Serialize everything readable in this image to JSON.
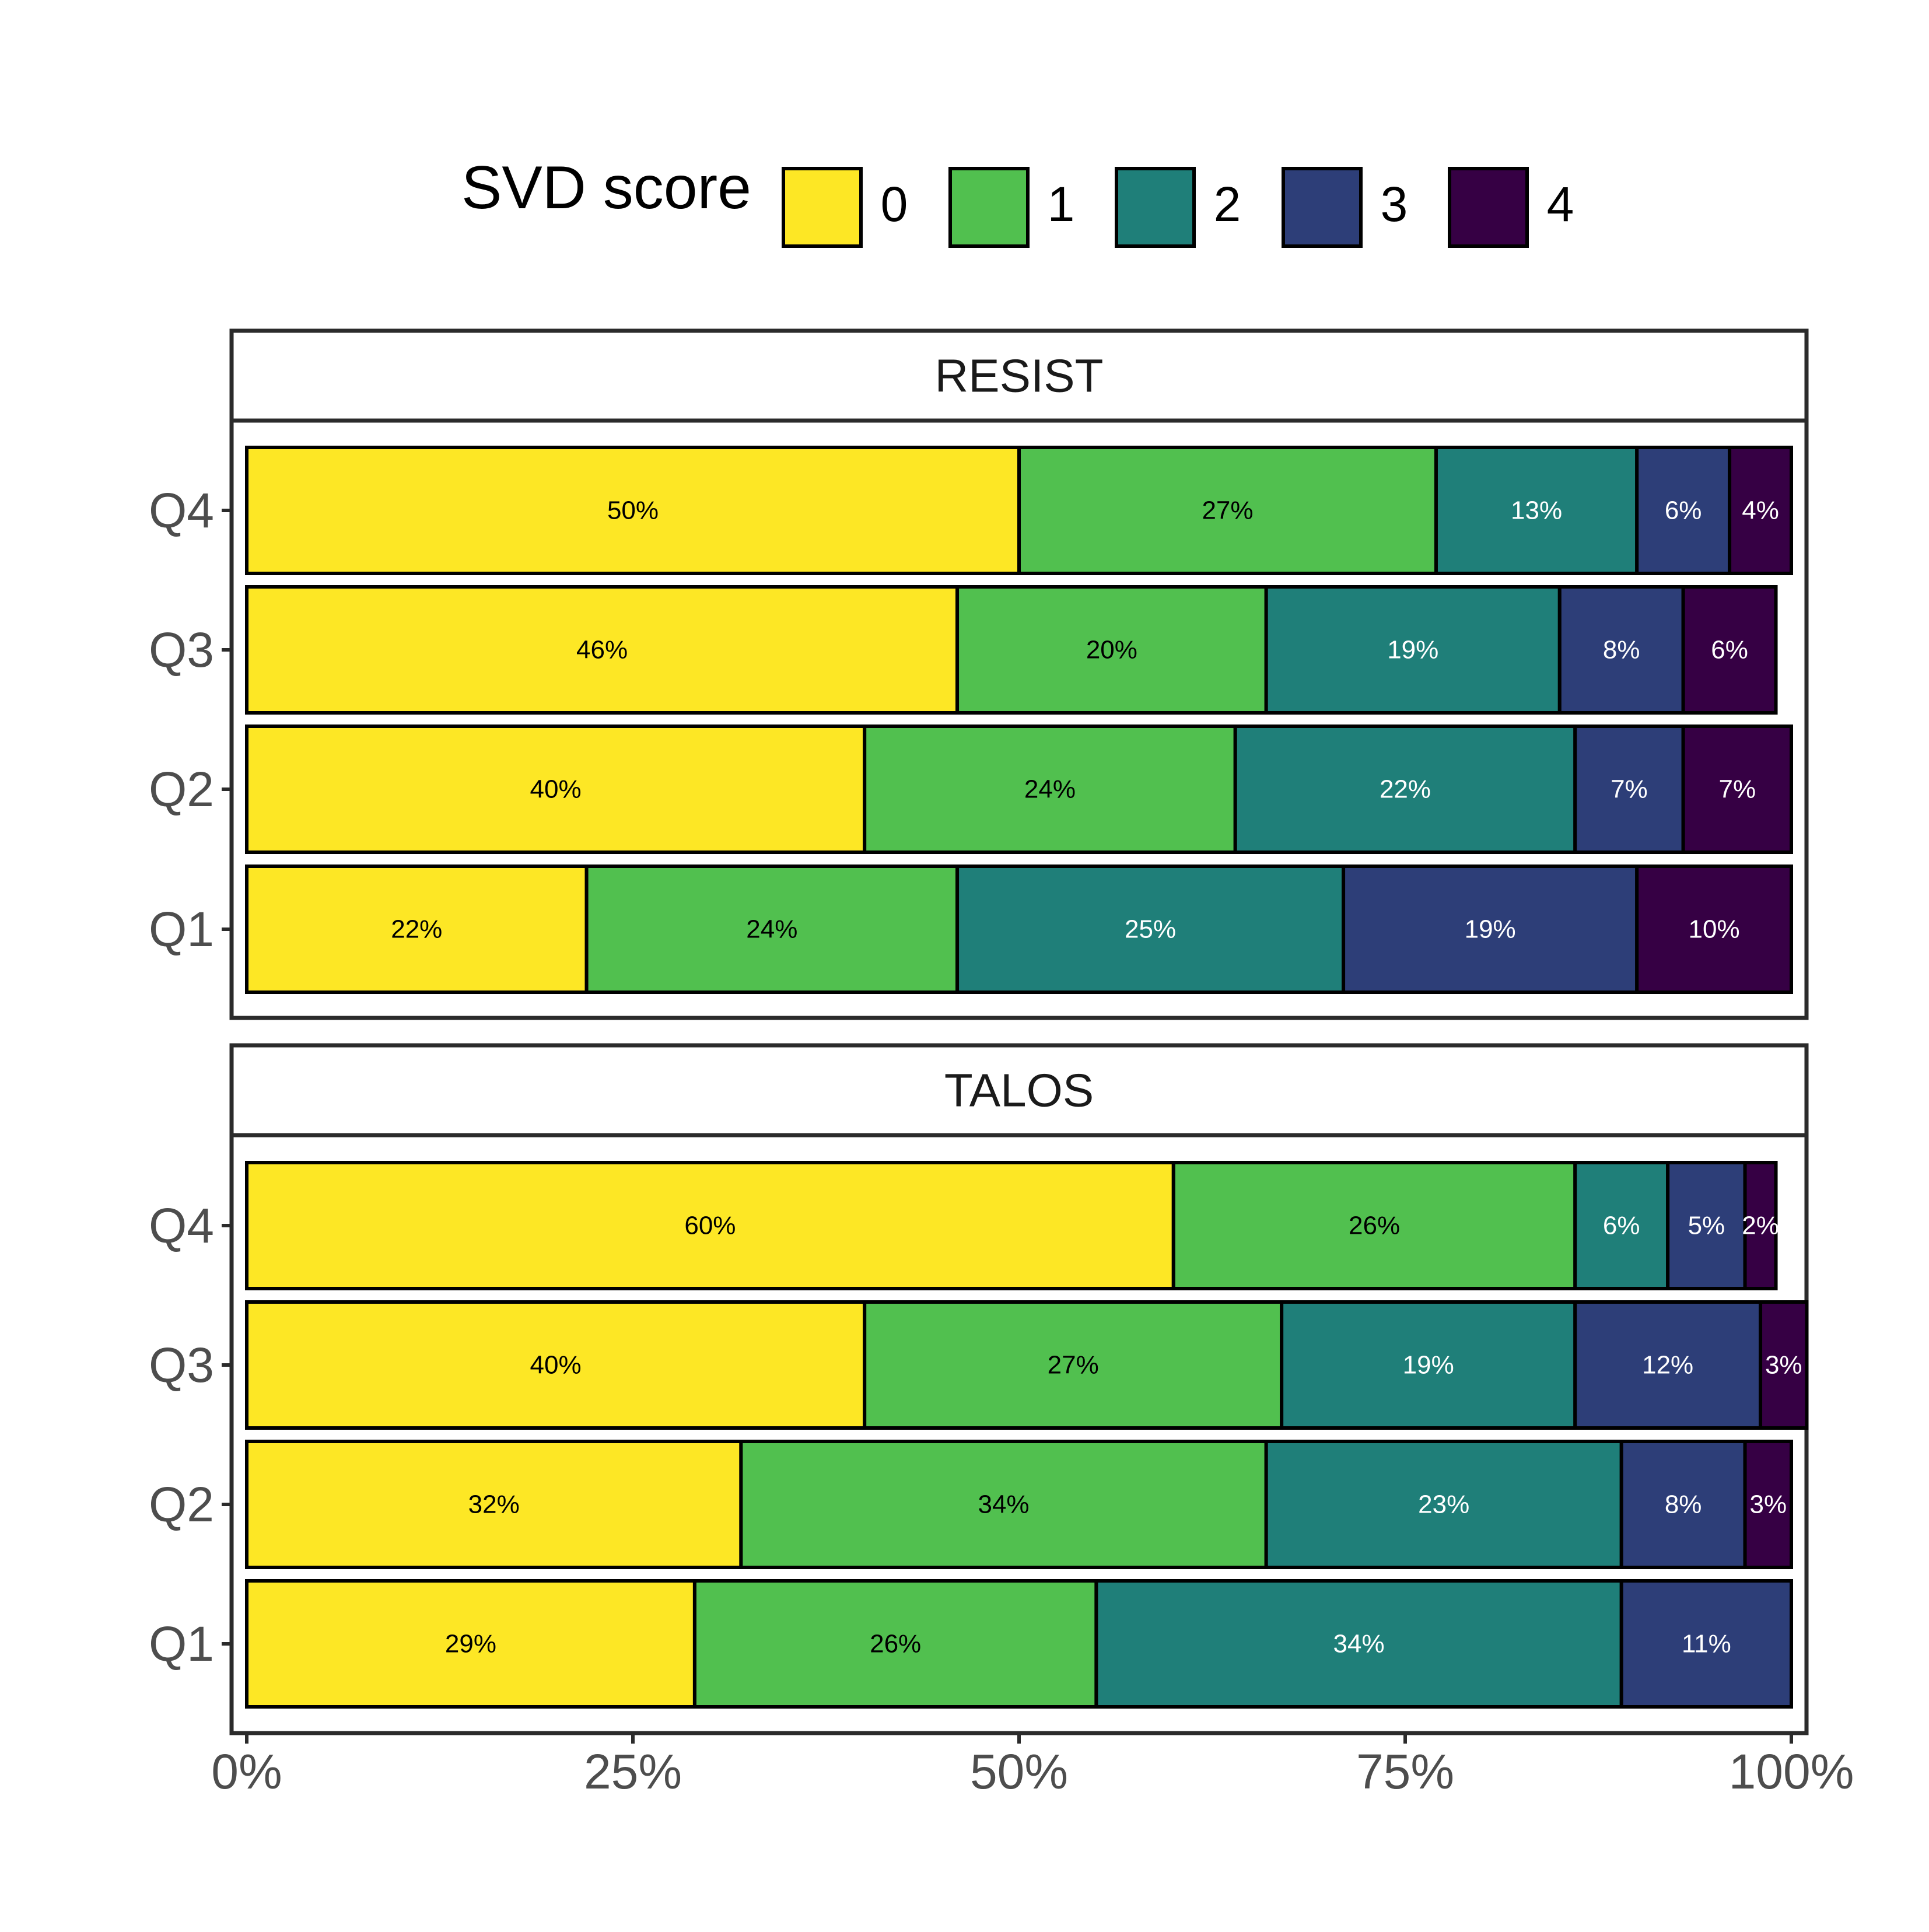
{
  "chart_data": {
    "type": "bar",
    "orientation": "horizontal",
    "stacked": "percent",
    "title": "",
    "xlabel": "",
    "ylabel": "",
    "xlim": [
      0,
      100
    ],
    "x_ticks": [
      "0%",
      "25%",
      "50%",
      "75%",
      "100%"
    ],
    "legend": {
      "title": "SVD score",
      "position": "top",
      "entries": [
        "0",
        "1",
        "2",
        "3",
        "4"
      ]
    },
    "colors": [
      "#FDE725",
      "#51C04F",
      "#1F7F79",
      "#2D3E78",
      "#360044"
    ],
    "panel_order": [
      "RESIST",
      "TALOS"
    ],
    "category_order_top_to_bottom": [
      "Q4",
      "Q3",
      "Q2",
      "Q1"
    ],
    "panels": [
      {
        "name": "RESIST",
        "rows": [
          {
            "category": "Q4",
            "values": [
              50,
              27,
              13,
              6,
              4
            ],
            "labels": [
              "50%",
              "27%",
              "13%",
              "6%",
              "4%"
            ]
          },
          {
            "category": "Q3",
            "values": [
              46,
              20,
              19,
              8,
              6
            ],
            "labels": [
              "46%",
              "20%",
              "19%",
              "8%",
              "6%"
            ]
          },
          {
            "category": "Q2",
            "values": [
              40,
              24,
              22,
              7,
              7
            ],
            "labels": [
              "40%",
              "24%",
              "22%",
              "7%",
              "7%"
            ]
          },
          {
            "category": "Q1",
            "values": [
              22,
              24,
              25,
              19,
              10
            ],
            "labels": [
              "22%",
              "24%",
              "25%",
              "19%",
              "10%"
            ]
          }
        ]
      },
      {
        "name": "TALOS",
        "rows": [
          {
            "category": "Q4",
            "values": [
              60,
              26,
              6,
              5,
              2
            ],
            "labels": [
              "60%",
              "26%",
              "6%",
              "5%",
              "2%"
            ]
          },
          {
            "category": "Q3",
            "values": [
              40,
              27,
              19,
              12,
              3
            ],
            "labels": [
              "40%",
              "27%",
              "19%",
              "12%",
              "3%"
            ]
          },
          {
            "category": "Q2",
            "values": [
              32,
              34,
              23,
              8,
              3
            ],
            "labels": [
              "32%",
              "34%",
              "23%",
              "8%",
              "3%"
            ]
          },
          {
            "category": "Q1",
            "values": [
              29,
              26,
              34,
              11,
              0
            ],
            "labels": [
              "29%",
              "26%",
              "34%",
              "11%",
              ""
            ]
          }
        ]
      }
    ]
  }
}
